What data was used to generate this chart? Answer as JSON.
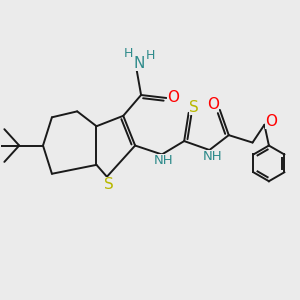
{
  "background_color": "#ebebeb",
  "bond_color": "#1a1a1a",
  "bond_width": 1.4,
  "atom_colors": {
    "N": "#2e8b8b",
    "O": "#ff0000",
    "S": "#b8b800",
    "H": "#2e8b8b"
  },
  "figsize": [
    3.0,
    3.0
  ],
  "dpi": 100
}
